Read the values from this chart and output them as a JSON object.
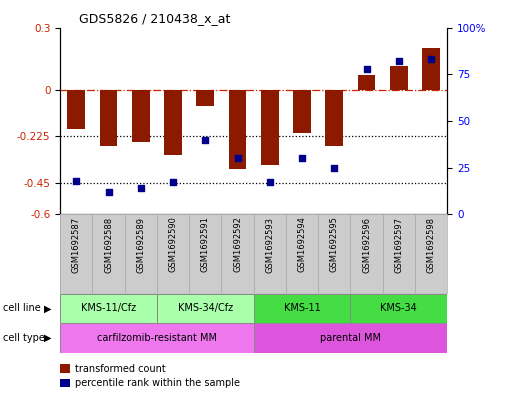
{
  "title": "GDS5826 / 210438_x_at",
  "samples": [
    "GSM1692587",
    "GSM1692588",
    "GSM1692589",
    "GSM1692590",
    "GSM1692591",
    "GSM1692592",
    "GSM1692593",
    "GSM1692594",
    "GSM1692595",
    "GSM1692596",
    "GSM1692597",
    "GSM1692598"
  ],
  "bar_values": [
    -0.19,
    -0.27,
    -0.25,
    -0.315,
    -0.08,
    -0.38,
    -0.365,
    -0.21,
    -0.27,
    0.07,
    0.115,
    0.2
  ],
  "percentile_values": [
    18,
    12,
    14,
    17,
    40,
    30,
    17,
    30,
    25,
    78,
    82,
    83
  ],
  "bar_color": "#8B1A00",
  "percentile_color": "#00008B",
  "ylim_left": [
    -0.6,
    0.3
  ],
  "ylim_right": [
    0,
    100
  ],
  "dotted_lines": [
    -0.225,
    -0.45
  ],
  "right_ticks": [
    0,
    25,
    50,
    75,
    100
  ],
  "left_ticks": [
    -0.6,
    -0.45,
    -0.225,
    0,
    0.3
  ],
  "cell_line_groups": [
    {
      "label": "KMS-11/Cfz",
      "start": 0,
      "end": 2,
      "color": "#AAFFAA"
    },
    {
      "label": "KMS-34/Cfz",
      "start": 3,
      "end": 5,
      "color": "#AAFFAA"
    },
    {
      "label": "KMS-11",
      "start": 6,
      "end": 8,
      "color": "#44DD44"
    },
    {
      "label": "KMS-34",
      "start": 9,
      "end": 11,
      "color": "#44DD44"
    }
  ],
  "cell_type_groups": [
    {
      "label": "carfilzomib-resistant MM",
      "start": 0,
      "end": 5,
      "color": "#EE77EE"
    },
    {
      "label": "parental MM",
      "start": 6,
      "end": 11,
      "color": "#DD55DD"
    }
  ],
  "legend_items": [
    {
      "label": "transformed count",
      "color": "#8B1A00"
    },
    {
      "label": "percentile rank within the sample",
      "color": "#00008B"
    }
  ],
  "bg_color": "#FFFFFF",
  "sample_bg": "#CCCCCC",
  "plot_bg": "#FFFFFF"
}
